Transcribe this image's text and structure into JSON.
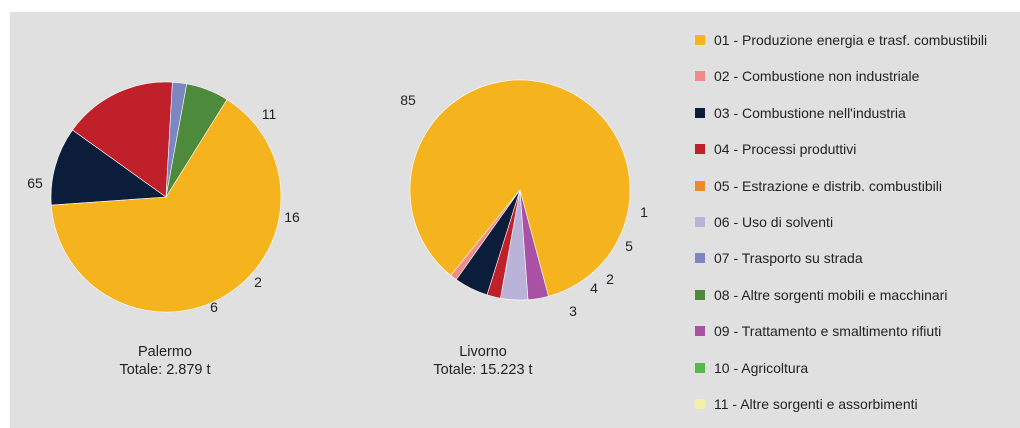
{
  "legend": [
    {
      "label": "01 - Produzione energia e trasf. combustibili",
      "color": "#f5b41e"
    },
    {
      "label": "02 - Combustione non industriale",
      "color": "#ef8b8b"
    },
    {
      "label": "03 - Combustione nell'industria",
      "color": "#0c1d3b"
    },
    {
      "label": "04 - Processi produttivi",
      "color": "#c0202a"
    },
    {
      "label": "05 - Estrazione e distrib. combustibili",
      "color": "#ef8a2b"
    },
    {
      "label": "06 - Uso di solventi",
      "color": "#b9b3d9"
    },
    {
      "label": "07 - Trasporto su strada",
      "color": "#7b86c2"
    },
    {
      "label": "08 - Altre sorgenti mobili e macchinari",
      "color": "#4e8a3b"
    },
    {
      "label": "09 - Trattamento e smaltimento rifiuti",
      "color": "#a851a5"
    },
    {
      "label": "10 - Agricoltura",
      "color": "#56b84b"
    },
    {
      "label": "11 - Altre sorgenti e assorbimenti",
      "color": "#f4f0a6"
    }
  ],
  "chart_data": [
    {
      "type": "pie",
      "city": "Palermo",
      "total_label": "Totale: 2.879 t",
      "slices": [
        {
          "category": "01",
          "value": 65,
          "label": "65"
        },
        {
          "category": "03",
          "value": 11,
          "label": "11"
        },
        {
          "category": "04",
          "value": 16,
          "label": "16"
        },
        {
          "category": "07",
          "value": 2,
          "label": "2"
        },
        {
          "category": "08",
          "value": 6,
          "label": "6"
        }
      ]
    },
    {
      "type": "pie",
      "city": "Livorno",
      "total_label": "Totale: 15.223 t",
      "slices": [
        {
          "category": "01",
          "value": 85,
          "label": "85"
        },
        {
          "category": "02",
          "value": 1,
          "label": "1"
        },
        {
          "category": "03",
          "value": 5,
          "label": "5"
        },
        {
          "category": "04",
          "value": 2,
          "label": "2"
        },
        {
          "category": "06",
          "value": 4,
          "label": "4"
        },
        {
          "category": "09",
          "value": 3,
          "label": "3"
        }
      ]
    }
  ]
}
